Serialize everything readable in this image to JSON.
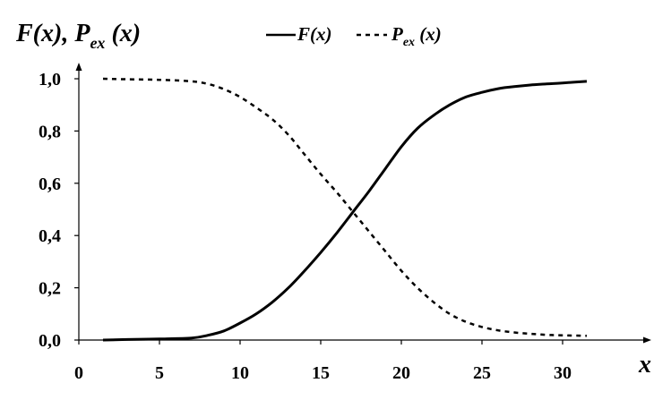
{
  "chart_data": {
    "type": "line",
    "title": "",
    "ylabel_parts": [
      "F(x), P",
      "ex",
      " (x)"
    ],
    "xlabel": "x",
    "xlim": [
      0,
      35
    ],
    "ylim": [
      0,
      1.0
    ],
    "x_ticks": [
      0,
      5,
      10,
      15,
      20,
      25,
      30
    ],
    "x_tick_labels": [
      "0",
      "5",
      "10",
      "15",
      "20",
      "25",
      "30"
    ],
    "y_ticks": [
      0,
      0.2,
      0.4,
      0.6,
      0.8,
      1.0
    ],
    "y_tick_labels": [
      "0,0",
      "0,2",
      "0,4",
      "0,6",
      "0,8",
      "1,0"
    ],
    "grid": false,
    "legend": {
      "placement": "top-center",
      "entries": [
        {
          "style": "solid",
          "label_parts": [
            "F(x)"
          ]
        },
        {
          "style": "dashed",
          "label_parts": [
            "P",
            "ex",
            " (x)"
          ]
        }
      ]
    },
    "series": [
      {
        "key": "F",
        "style": "solid",
        "color": "#000000",
        "x": [
          1.5,
          3,
          5,
          7,
          8,
          9,
          10,
          11,
          12,
          13,
          14,
          15,
          16,
          17,
          18,
          19,
          20,
          21,
          22,
          23,
          24,
          25,
          26,
          27,
          28,
          29,
          30,
          31.5
        ],
        "values": [
          0.0,
          0.002,
          0.004,
          0.008,
          0.018,
          0.035,
          0.065,
          0.1,
          0.145,
          0.2,
          0.265,
          0.335,
          0.41,
          0.49,
          0.57,
          0.655,
          0.74,
          0.81,
          0.86,
          0.9,
          0.93,
          0.948,
          0.962,
          0.97,
          0.976,
          0.98,
          0.984,
          0.99
        ]
      },
      {
        "key": "Pex",
        "style": "dashed",
        "color": "#000000",
        "x": [
          1.5,
          3,
          5,
          7,
          8,
          9,
          10,
          11,
          12,
          13,
          14,
          15,
          16,
          17,
          18,
          19,
          20,
          21,
          22,
          23,
          24,
          25,
          26,
          27,
          28,
          29,
          30,
          31.5
        ],
        "values": [
          1.0,
          0.998,
          0.996,
          0.99,
          0.98,
          0.96,
          0.93,
          0.89,
          0.845,
          0.785,
          0.71,
          0.635,
          0.565,
          0.49,
          0.415,
          0.34,
          0.265,
          0.2,
          0.145,
          0.1,
          0.07,
          0.05,
          0.037,
          0.029,
          0.024,
          0.02,
          0.018,
          0.016
        ]
      }
    ]
  }
}
